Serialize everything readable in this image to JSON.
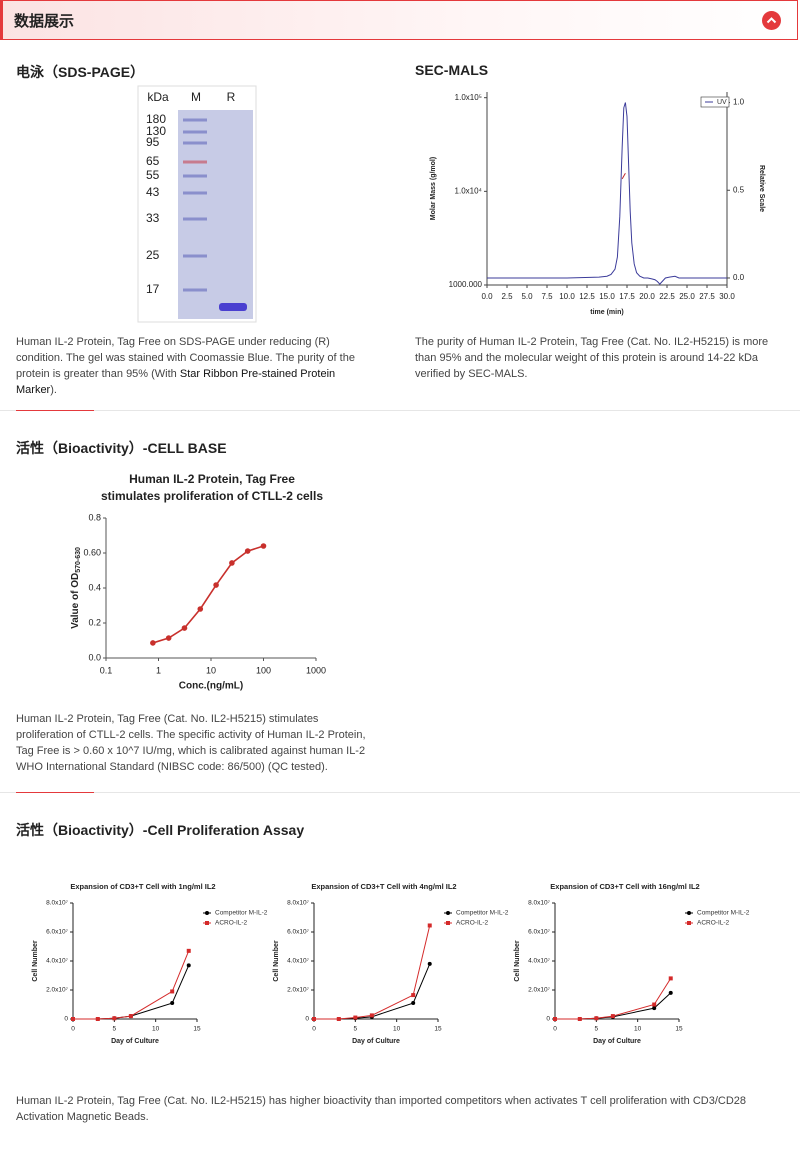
{
  "header": {
    "title": "数据展示"
  },
  "sds_page": {
    "title": "电泳（SDS-PAGE）",
    "gel": {
      "unit": "kDa",
      "lanes": [
        "M",
        "R"
      ],
      "markers": [
        180,
        130,
        95,
        65,
        55,
        43,
        33,
        25,
        17
      ]
    },
    "caption": "Human IL-2 Protein, Tag Free on SDS-PAGE under reducing (R) condition. The gel was stained with Coomassie Blue. The purity of the protein is greater than 95% (With ",
    "caption_link": "Star Ribbon Pre-stained Protein Marker",
    "caption_end": ")."
  },
  "sec_mals": {
    "title": "SEC-MALS",
    "chart": {
      "type": "line",
      "x_label": "time (min)",
      "y_label": "Molar Mass (g/mol)",
      "y2_label": "Relative Scale",
      "xlim": [
        0,
        30
      ],
      "xticks": [
        {
          "value": 0,
          "label": "0.0"
        },
        2.5,
        {
          "value": 5,
          "label": "5.0"
        },
        7.5,
        {
          "value": 10,
          "label": "10.0"
        },
        12.5,
        {
          "value": 15,
          "label": "15.0"
        },
        17.5,
        {
          "value": 20,
          "label": "20.0"
        },
        22.5,
        {
          "value": 25,
          "label": "25.0"
        },
        27.5,
        {
          "value": 30,
          "label": "30.0"
        }
      ],
      "ylog": true,
      "ylim": [
        1000,
        115000
      ],
      "yticks": [
        {
          "value": 1000,
          "label": "1000.000"
        },
        {
          "value": 10000,
          "label": "1.0x10⁴"
        },
        {
          "value": 100000,
          "label": "1.0x10⁵"
        }
      ],
      "y2lim": [
        -0.04,
        1.06
      ],
      "y2ticks": [
        {
          "value": 0,
          "label": "0.0"
        },
        0.5,
        {
          "value": 1,
          "label": "1.0"
        }
      ],
      "series": [
        {
          "name": "UV",
          "color": "#3b3b9a",
          "axis": "y2",
          "x": [
            0,
            5,
            10,
            14,
            15,
            15.5,
            16,
            16.3,
            16.6,
            16.9,
            17.1,
            17.3,
            17.5,
            17.7,
            17.9,
            18.1,
            18.4,
            18.7,
            19.1,
            19.6,
            20.1,
            20.6,
            21.0,
            21.3,
            21.6,
            21.9,
            22.3,
            22.8,
            23.5,
            24,
            25,
            30
          ],
          "values": [
            0,
            0,
            0,
            0.005,
            0.01,
            0.02,
            0.05,
            0.12,
            0.35,
            0.75,
            0.97,
            1.0,
            0.92,
            0.65,
            0.38,
            0.2,
            0.08,
            0.03,
            0.01,
            0,
            0,
            -0.005,
            -0.01,
            -0.02,
            -0.035,
            -0.02,
            0,
            0.005,
            0.01,
            0,
            0,
            0
          ]
        },
        {
          "color": "#c0282d",
          "axis": "y",
          "x": [
            16.9,
            17.1,
            17.3
          ],
          "values": [
            13600,
            14600,
            15600
          ]
        }
      ],
      "legend": "top-right"
    },
    "caption": "The purity of Human IL-2 Protein, Tag Free (Cat. No. IL2-H5215) is more than 95% and the molecular weight of this protein is around 14-22 kDa verified by SEC-MALS."
  },
  "cell_base": {
    "title": "活性（Bioactivity）-CELL BASE",
    "chart": {
      "type": "line",
      "title": [
        "Human IL-2 Protein, Tag Free",
        "stimulates proliferation of CTLL-2 cells"
      ],
      "x_label": "Conc.(ng/mL)",
      "y_label": "Value of OD",
      "y_label_sub": "570-630",
      "xlog": true,
      "xlim": [
        0.1,
        1000
      ],
      "xticks": [
        0.1,
        1,
        10,
        100,
        1000
      ],
      "ylim": [
        0,
        0.8
      ],
      "yticks": [
        {
          "value": 0,
          "label": "0.0"
        },
        0.2,
        0.4,
        {
          "value": 0.6,
          "label": "0.60"
        },
        0.8
      ],
      "color": "#c8302c",
      "marker": "circle",
      "x": [
        0.78125,
        1.5625,
        3.125,
        6.25,
        12.5,
        25,
        50,
        100
      ],
      "values": [
        0.086,
        0.114,
        0.171,
        0.28,
        0.417,
        0.543,
        0.611,
        0.64
      ]
    },
    "caption": "Human IL-2 Protein, Tag Free (Cat. No. IL2-H5215) stimulates proliferation of CTLL-2 cells. The specific activity of Human IL-2 Protein, Tag Free is > 0.60 x 10^7 IU/mg, which is calibrated against human IL-2 WHO International Standard (NIBSC code: 86/500) (QC tested)."
  },
  "proliferation": {
    "title": "活性（Bioactivity）-Cell Proliferation Assay",
    "charts": [
      {
        "type": "line",
        "title": "Expansion of CD3+T Cell with 1ng/ml IL2",
        "x_label": "Day of Culture",
        "y_label": "Cell Number",
        "xlim": [
          0,
          15
        ],
        "xticks": [
          0,
          5,
          10,
          15
        ],
        "ylim": [
          0,
          80000000
        ],
        "yticks": [
          0,
          {
            "value": 20000000,
            "label": "2.0x10⁷"
          },
          {
            "value": 40000000,
            "label": "4.0x10⁷"
          },
          {
            "value": 60000000,
            "label": "6.0x10⁷"
          },
          {
            "value": 80000000,
            "label": "8.0x10⁷"
          }
        ],
        "x": [
          0,
          3,
          5,
          7,
          12,
          14
        ],
        "legend": "top-right",
        "series": [
          {
            "name": "Competitor M-IL-2",
            "color": "#000000",
            "marker": "circle",
            "values": [
              0,
              0,
              500000,
              2000000,
              11000000,
              37000000
            ]
          },
          {
            "name": "ACRO-IL-2",
            "color": "#d42a2a",
            "marker": "square",
            "values": [
              0,
              0,
              500000,
              2000000,
              19000000,
              47000000
            ]
          }
        ]
      },
      {
        "type": "line",
        "title": "Expansion of CD3+T Cell with 4ng/ml IL2",
        "x_label": "Day of Culture",
        "y_label": "Cell Number",
        "xlim": [
          0,
          15
        ],
        "xticks": [
          0,
          5,
          10,
          15
        ],
        "ylim": [
          0,
          80000000
        ],
        "yticks": [
          0,
          {
            "value": 20000000,
            "label": "2.0x10⁷"
          },
          {
            "value": 40000000,
            "label": "4.0x10⁷"
          },
          {
            "value": 60000000,
            "label": "6.0x10⁷"
          },
          {
            "value": 80000000,
            "label": "8.0x10⁷"
          }
        ],
        "x": [
          0,
          3,
          5,
          7,
          12,
          14
        ],
        "legend": "top-right",
        "series": [
          {
            "name": "Competitor M-IL-2",
            "color": "#000000",
            "marker": "circle",
            "values": [
              0,
              0,
              500000,
              1500000,
              11000000,
              38000000
            ]
          },
          {
            "name": "ACRO-IL-2",
            "color": "#d42a2a",
            "marker": "square",
            "values": [
              0,
              0,
              1000000,
              2500000,
              16500000,
              64500000
            ]
          }
        ]
      },
      {
        "type": "line",
        "title": "Expansion of CD3+T Cell with 16ng/ml IL2",
        "x_label": "Day of Culture",
        "y_label": "Cell Number",
        "xlim": [
          0,
          15
        ],
        "xticks": [
          0,
          5,
          10,
          15
        ],
        "ylim": [
          0,
          80000000
        ],
        "yticks": [
          0,
          {
            "value": 20000000,
            "label": "2.0x10⁷"
          },
          {
            "value": 40000000,
            "label": "4.0x10⁷"
          },
          {
            "value": 60000000,
            "label": "6.0x10⁷"
          },
          {
            "value": 80000000,
            "label": "8.0x10⁷"
          }
        ],
        "x": [
          0,
          3,
          5,
          7,
          12,
          14
        ],
        "legend": "top-right",
        "series": [
          {
            "name": "Competitor M-IL-2",
            "color": "#000000",
            "marker": "circle",
            "values": [
              0,
              0,
              500000,
              1500000,
              7500000,
              18000000
            ]
          },
          {
            "name": "ACRO-IL-2",
            "color": "#d42a2a",
            "marker": "square",
            "values": [
              0,
              0,
              500000,
              2000000,
              10000000,
              28000000
            ]
          }
        ]
      }
    ],
    "caption": "Human IL-2 Protein, Tag Free (Cat. No. IL2-H5215) has higher bioactivity than imported competitors when activates T cell proliferation with CD3/CD28 Activation Magnetic Beads."
  }
}
